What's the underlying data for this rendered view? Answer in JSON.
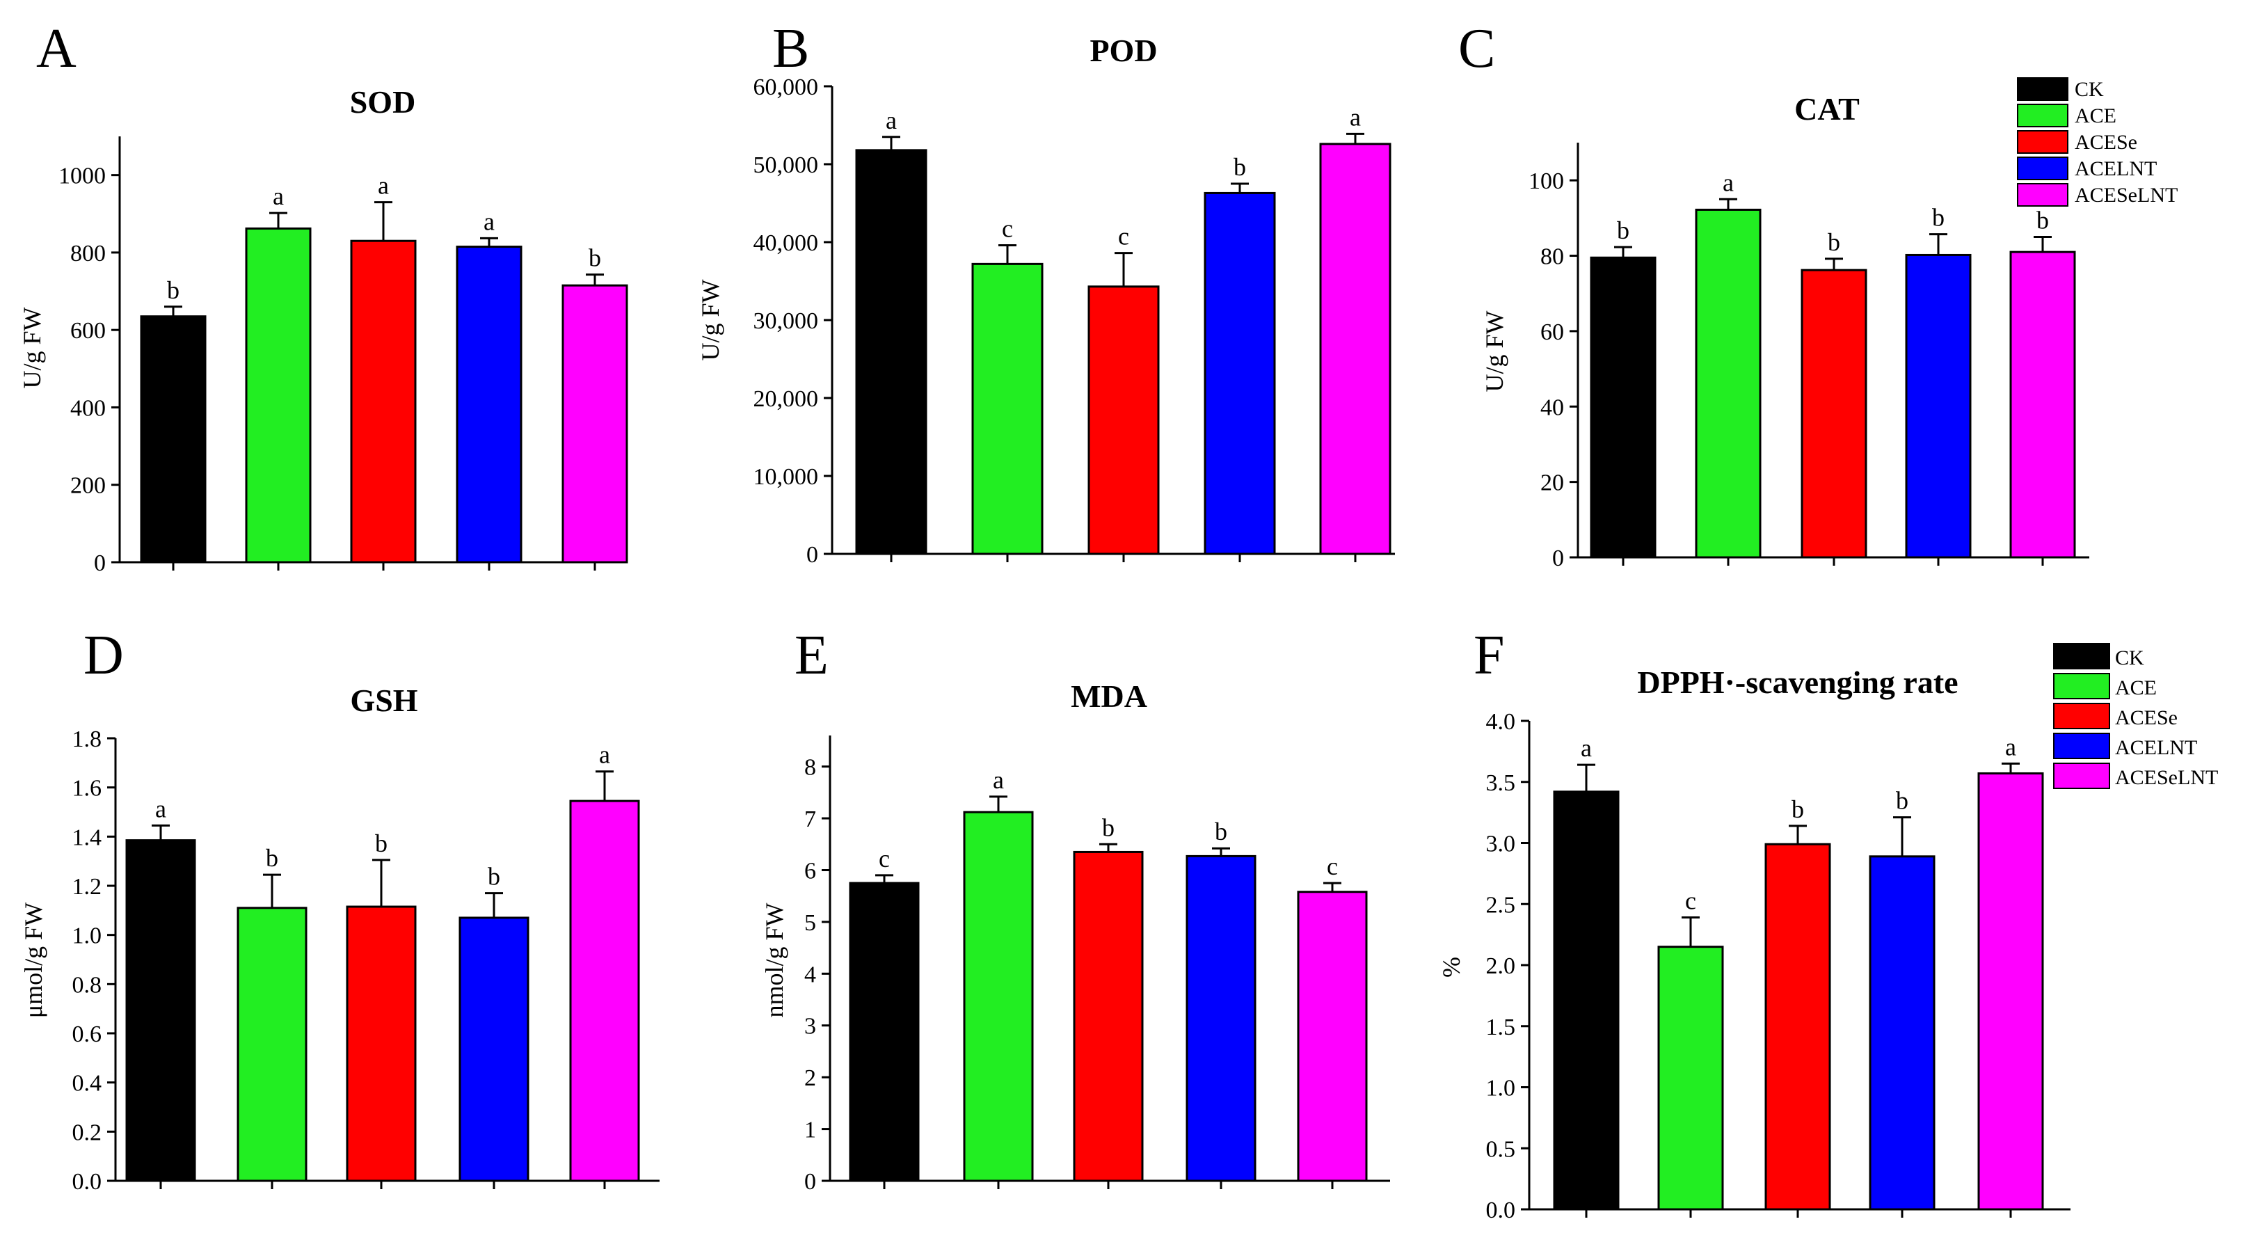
{
  "groups": [
    "CK",
    "ACE",
    "ACESe",
    "ACELNT",
    "ACESeLNT"
  ],
  "colors": {
    "CK": "#000000",
    "ACE": "#22ee22",
    "ACESe": "#ff0000",
    "ACELNT": "#0000ff",
    "ACESeLNT": "#ff00ff"
  },
  "legends": [
    {
      "panel": "C",
      "entries": [
        "CK",
        "ACE",
        "ACESe",
        "ACELNT",
        "ACESeLNT"
      ]
    },
    {
      "panel": "F",
      "entries": [
        "CK",
        "ACE",
        "ACESe",
        "ACELNT",
        "ACESeLNT"
      ]
    }
  ],
  "chart_data": [
    {
      "panel": "A",
      "type": "bar",
      "title": "SOD",
      "xlabel": "",
      "ylabel": "U/g FW",
      "categories": [
        "CK",
        "ACE",
        "ACESe",
        "ACELNT",
        "ACESeLNT"
      ],
      "values": [
        635,
        862,
        830,
        815,
        715
      ],
      "errors": [
        25,
        40,
        100,
        22,
        28
      ],
      "significance": [
        "b",
        "a",
        "a",
        "a",
        "b"
      ],
      "ylim": [
        0,
        1100
      ],
      "yticks": [
        0,
        200,
        400,
        600,
        800,
        1000
      ],
      "ytick_labels": [
        "0",
        "200",
        "400",
        "600",
        "800",
        "1000"
      ]
    },
    {
      "panel": "B",
      "type": "bar",
      "title": "POD",
      "xlabel": "",
      "ylabel": "U/g FW",
      "categories": [
        "CK",
        "ACE",
        "ACESe",
        "ACELNT",
        "ACESeLNT"
      ],
      "values": [
        51800,
        37200,
        34300,
        46300,
        52600
      ],
      "errors": [
        1700,
        2400,
        4300,
        1200,
        1300
      ],
      "significance": [
        "a",
        "c",
        "c",
        "b",
        "a"
      ],
      "ylim": [
        0,
        60000
      ],
      "yticks": [
        0,
        10000,
        20000,
        30000,
        40000,
        50000,
        60000
      ],
      "ytick_labels": [
        "0",
        "10,000",
        "20,000",
        "30,000",
        "40,000",
        "50,000",
        "60,000"
      ]
    },
    {
      "panel": "C",
      "type": "bar",
      "title": "CAT",
      "xlabel": "",
      "ylabel": "U/g FW",
      "categories": [
        "CK",
        "ACE",
        "ACESe",
        "ACELNT",
        "ACESeLNT"
      ],
      "values": [
        79.5,
        92.2,
        76.2,
        80.2,
        81.0
      ],
      "errors": [
        2.8,
        2.8,
        3.0,
        5.5,
        4.0
      ],
      "significance": [
        "b",
        "a",
        "b",
        "b",
        "b"
      ],
      "ylim": [
        0,
        110
      ],
      "yticks": [
        0,
        20,
        40,
        60,
        80,
        100
      ],
      "ytick_labels": [
        "0",
        "20",
        "40",
        "60",
        "80",
        "100"
      ]
    },
    {
      "panel": "D",
      "type": "bar",
      "title": "GSH",
      "xlabel": "",
      "ylabel": "μmol/g FW",
      "categories": [
        "CK",
        "ACE",
        "ACESe",
        "ACELNT",
        "ACESeLNT"
      ],
      "values": [
        1.385,
        1.11,
        1.115,
        1.07,
        1.545
      ],
      "errors": [
        0.06,
        0.135,
        0.19,
        0.1,
        0.12
      ],
      "significance": [
        "a",
        "b",
        "b",
        "b",
        "a"
      ],
      "ylim": [
        0,
        1.8
      ],
      "yticks": [
        0,
        0.2,
        0.4,
        0.6,
        0.8,
        1.0,
        1.2,
        1.4,
        1.6,
        1.8
      ],
      "ytick_labels": [
        "0.0",
        "0.2",
        "0.4",
        "0.6",
        "0.8",
        "1.0",
        "1.2",
        "1.4",
        "1.6",
        "1.8"
      ]
    },
    {
      "panel": "E",
      "type": "bar",
      "title": "MDA",
      "xlabel": "",
      "ylabel": "nmol/g FW",
      "categories": [
        "CK",
        "ACE",
        "ACESe",
        "ACELNT",
        "ACESeLNT"
      ],
      "values": [
        5.75,
        7.12,
        6.35,
        6.27,
        5.58
      ],
      "errors": [
        0.15,
        0.3,
        0.15,
        0.15,
        0.17
      ],
      "significance": [
        "c",
        "a",
        "b",
        "b",
        "c"
      ],
      "ylim": [
        0,
        8.6
      ],
      "yticks": [
        0,
        1,
        2,
        3,
        4,
        5,
        6,
        7,
        8
      ],
      "ytick_labels": [
        "0",
        "1",
        "2",
        "3",
        "4",
        "5",
        "6",
        "7",
        "8"
      ]
    },
    {
      "panel": "F",
      "type": "bar",
      "title": "DPPH·-scavenging rate",
      "xlabel": "",
      "ylabel": "%",
      "categories": [
        "CK",
        "ACE",
        "ACESe",
        "ACELNT",
        "ACESeLNT"
      ],
      "values": [
        3.42,
        2.15,
        2.99,
        2.89,
        3.57
      ],
      "errors": [
        0.22,
        0.24,
        0.15,
        0.32,
        0.08
      ],
      "significance": [
        "a",
        "c",
        "b",
        "b",
        "a"
      ],
      "ylim": [
        0,
        4.0
      ],
      "yticks": [
        0,
        0.5,
        1.0,
        1.5,
        2.0,
        2.5,
        3.0,
        3.5,
        4.0
      ],
      "ytick_labels": [
        "0.0",
        "0.5",
        "1.0",
        "1.5",
        "2.0",
        "2.5",
        "3.0",
        "3.5",
        "4.0"
      ]
    }
  ]
}
